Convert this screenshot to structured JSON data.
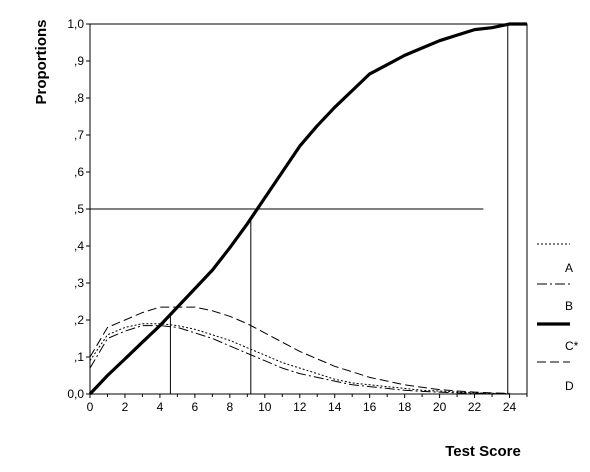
{
  "chart_data": {
    "type": "line",
    "xlabel": "Test Score",
    "ylabel": "Proportions",
    "xlim": [
      0,
      25
    ],
    "ylim": [
      0,
      1
    ],
    "x_ticks": [
      "0",
      "2",
      "4",
      "6",
      "8",
      "10",
      "12",
      "14",
      "16",
      "18",
      "20",
      "22",
      "24"
    ],
    "y_ticks": [
      "0,0",
      ",1",
      ",2",
      ",3",
      ",4",
      ",5",
      ",6",
      ",7",
      ",8",
      ",9",
      "1,0"
    ],
    "grid": false,
    "legend_position": "right",
    "series": [
      {
        "name": "A",
        "style": "dotted",
        "x": [
          0,
          1,
          2,
          3,
          4,
          5,
          6,
          7,
          8,
          9,
          10,
          11,
          12,
          13,
          14,
          15,
          16,
          17,
          18,
          19,
          20,
          21,
          22,
          23,
          24
        ],
        "y": [
          0.09,
          0.16,
          0.18,
          0.19,
          0.19,
          0.185,
          0.175,
          0.16,
          0.145,
          0.125,
          0.105,
          0.085,
          0.07,
          0.055,
          0.04,
          0.03,
          0.025,
          0.02,
          0.015,
          0.01,
          0.008,
          0.005,
          0.003,
          0.002,
          0.001
        ]
      },
      {
        "name": "B",
        "style": "dash-dot",
        "x": [
          0,
          1,
          2,
          3,
          4,
          5,
          6,
          7,
          8,
          9,
          10,
          11,
          12,
          13,
          14,
          15,
          16,
          17,
          18,
          19,
          20,
          21,
          22,
          23,
          24
        ],
        "y": [
          0.07,
          0.15,
          0.17,
          0.185,
          0.185,
          0.18,
          0.165,
          0.15,
          0.13,
          0.11,
          0.09,
          0.07,
          0.055,
          0.045,
          0.035,
          0.025,
          0.02,
          0.015,
          0.01,
          0.007,
          0.005,
          0.003,
          0.002,
          0.001,
          0
        ]
      },
      {
        "name": "C*",
        "style": "thick-solid",
        "x": [
          0,
          1,
          2,
          3,
          4,
          5,
          6,
          7,
          8,
          9,
          10,
          11,
          12,
          13,
          14,
          15,
          16,
          17,
          18,
          19,
          20,
          21,
          22,
          23,
          24,
          24.5,
          25
        ],
        "y": [
          0,
          0.05,
          0.095,
          0.14,
          0.185,
          0.235,
          0.285,
          0.335,
          0.395,
          0.46,
          0.53,
          0.6,
          0.67,
          0.725,
          0.775,
          0.82,
          0.865,
          0.89,
          0.915,
          0.935,
          0.955,
          0.97,
          0.985,
          0.99,
          1.0,
          1.0,
          1.0
        ]
      },
      {
        "name": "D",
        "style": "dashed",
        "x": [
          0,
          1,
          2,
          3,
          4,
          5,
          6,
          7,
          8,
          9,
          10,
          11,
          12,
          13,
          14,
          15,
          16,
          17,
          18,
          19,
          20,
          21,
          22,
          23,
          24
        ],
        "y": [
          0.1,
          0.18,
          0.2,
          0.22,
          0.235,
          0.235,
          0.235,
          0.225,
          0.21,
          0.19,
          0.165,
          0.14,
          0.115,
          0.095,
          0.075,
          0.06,
          0.045,
          0.035,
          0.025,
          0.018,
          0.012,
          0.008,
          0.005,
          0.003,
          0.002
        ]
      }
    ],
    "reference_lines": {
      "horizontal_y": 0.5,
      "horizontal_x_end": 22.5,
      "vertical_x": [
        4.6,
        9.2,
        23.9
      ]
    }
  }
}
